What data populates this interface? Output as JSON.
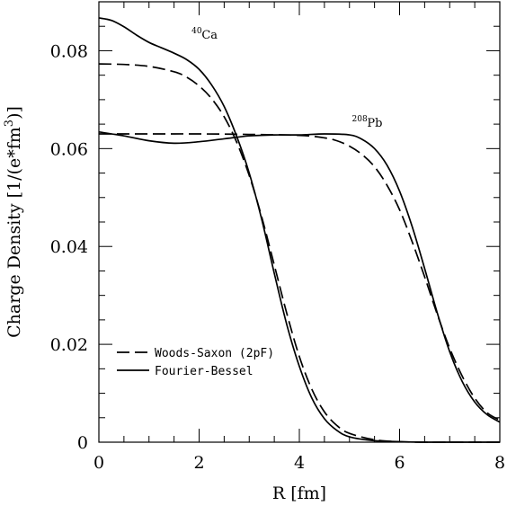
{
  "chart_data": {
    "type": "line",
    "xlabel": "R [fm]",
    "ylabel": "Charge Density [1/(e*fm",
    "ylabel_sup": "3",
    "ylabel_tail": ")]",
    "xlim": [
      0,
      8
    ],
    "ylim": [
      0,
      0.09
    ],
    "xticks": [
      0,
      2,
      4,
      6,
      8
    ],
    "xtick_labels": [
      "0",
      "2",
      "4",
      "6",
      "8"
    ],
    "yticks": [
      0,
      0.02,
      0.04,
      0.06,
      0.08
    ],
    "ytick_labels": [
      "0",
      "0.02",
      "0.04",
      "0.06",
      "0.08"
    ],
    "grid": false,
    "legend_position": "lower-left",
    "legend": [
      {
        "label": "Woods-Saxon (2pF)",
        "style": "dashed"
      },
      {
        "label": "Fourier-Bessel",
        "style": "solid"
      }
    ],
    "annotations": [
      {
        "sup": "40",
        "text": "Ca",
        "x": 1.85,
        "y": 0.0825
      },
      {
        "sup": "208",
        "text": "Pb",
        "x": 5.05,
        "y": 0.0645
      }
    ],
    "series": [
      {
        "nucleus": "40Ca",
        "style": "solid",
        "x": [
          0,
          0.25,
          0.5,
          0.75,
          1.0,
          1.25,
          1.5,
          1.75,
          2.0,
          2.25,
          2.5,
          2.75,
          3.0,
          3.25,
          3.5,
          3.75,
          4.0,
          4.25,
          4.5,
          4.75,
          5.0,
          5.5,
          6.0,
          6.5,
          7.0,
          7.5,
          8.0
        ],
        "y": [
          0.0867,
          0.0862,
          0.0849,
          0.0832,
          0.0817,
          0.0806,
          0.0795,
          0.0782,
          0.0762,
          0.073,
          0.0686,
          0.0625,
          0.055,
          0.0455,
          0.0345,
          0.024,
          0.0155,
          0.009,
          0.0048,
          0.0024,
          0.0011,
          0.0003,
          0.0001,
          0.0,
          0.0,
          0.0,
          0.0
        ]
      },
      {
        "nucleus": "40Ca",
        "style": "dashed",
        "x": [
          0,
          0.5,
          1.0,
          1.5,
          1.75,
          2.0,
          2.25,
          2.5,
          2.75,
          3.0,
          3.25,
          3.5,
          3.75,
          4.0,
          4.25,
          4.5,
          4.75,
          5.0,
          5.5,
          6.0,
          6.5,
          7.0,
          8.0
        ],
        "y": [
          0.0773,
          0.0772,
          0.0768,
          0.0757,
          0.0746,
          0.0728,
          0.0702,
          0.0665,
          0.0613,
          0.0545,
          0.046,
          0.0362,
          0.0263,
          0.0175,
          0.0108,
          0.0062,
          0.0034,
          0.0018,
          0.0005,
          0.0001,
          0.0,
          0.0,
          0.0
        ]
      },
      {
        "nucleus": "208Pb",
        "style": "solid",
        "x": [
          0,
          0.5,
          1.0,
          1.5,
          2.0,
          2.5,
          3.0,
          3.5,
          4.0,
          4.5,
          5.0,
          5.25,
          5.5,
          5.75,
          6.0,
          6.25,
          6.5,
          6.75,
          7.0,
          7.25,
          7.5,
          7.75,
          8.0
        ],
        "y": [
          0.0634,
          0.0626,
          0.0616,
          0.0611,
          0.0614,
          0.062,
          0.0626,
          0.0628,
          0.0628,
          0.063,
          0.0628,
          0.0619,
          0.06,
          0.0566,
          0.0513,
          0.0441,
          0.0355,
          0.0265,
          0.0185,
          0.0124,
          0.0082,
          0.0056,
          0.0041
        ]
      },
      {
        "nucleus": "208Pb",
        "style": "dashed",
        "x": [
          0,
          1.0,
          2.0,
          3.0,
          4.0,
          4.5,
          4.75,
          5.0,
          5.25,
          5.5,
          5.75,
          6.0,
          6.25,
          6.5,
          6.75,
          7.0,
          7.25,
          7.5,
          7.75,
          8.0
        ],
        "y": [
          0.063,
          0.063,
          0.063,
          0.0629,
          0.0627,
          0.0622,
          0.0616,
          0.0605,
          0.0588,
          0.0563,
          0.0525,
          0.0475,
          0.041,
          0.0338,
          0.0262,
          0.0192,
          0.0135,
          0.009,
          0.006,
          0.0045
        ]
      }
    ]
  }
}
